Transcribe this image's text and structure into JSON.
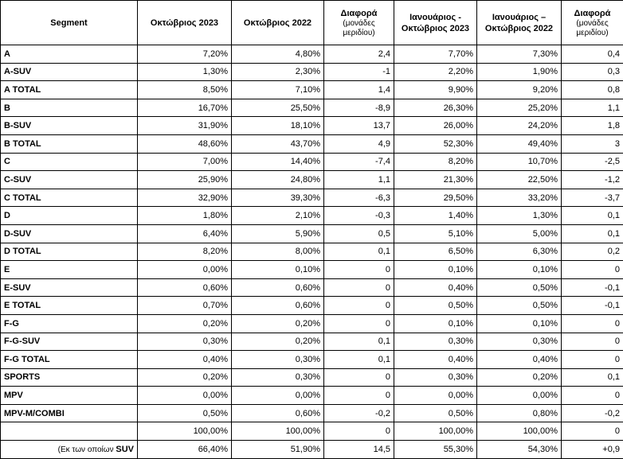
{
  "headers": {
    "segment": "Segment",
    "oct2023": "Οκτώβριος 2023",
    "oct2022": "Οκτώβριος 2022",
    "diff1": "Διαφορά",
    "diff1_sub": "(μονάδες μεριδίου)",
    "jan_oct2023": "Ιανουάριος - Οκτώβριος 2023",
    "jan_oct2022": "Ιανουάριος – Οκτώβριος 2022",
    "diff2": "Διαφορά",
    "diff2_sub": "(μονάδες μεριδίου)"
  },
  "rows": [
    {
      "segment": "A",
      "oct2023": "7,20%",
      "oct2022": "4,80%",
      "diff1": "2,4",
      "jan_oct2023": "7,70%",
      "jan_oct2022": "7,30%",
      "diff2": "0,4"
    },
    {
      "segment": "A-SUV",
      "oct2023": "1,30%",
      "oct2022": "2,30%",
      "diff1": "-1",
      "jan_oct2023": "2,20%",
      "jan_oct2022": "1,90%",
      "diff2": "0,3"
    },
    {
      "segment": "A TOTAL",
      "oct2023": "8,50%",
      "oct2022": "7,10%",
      "diff1": "1,4",
      "jan_oct2023": "9,90%",
      "jan_oct2022": "9,20%",
      "diff2": "0,8"
    },
    {
      "segment": "B",
      "oct2023": "16,70%",
      "oct2022": "25,50%",
      "diff1": "-8,9",
      "jan_oct2023": "26,30%",
      "jan_oct2022": "25,20%",
      "diff2": "1,1"
    },
    {
      "segment": "B-SUV",
      "oct2023": "31,90%",
      "oct2022": "18,10%",
      "diff1": "13,7",
      "jan_oct2023": "26,00%",
      "jan_oct2022": "24,20%",
      "diff2": "1,8"
    },
    {
      "segment": "B TOTAL",
      "oct2023": "48,60%",
      "oct2022": "43,70%",
      "diff1": "4,9",
      "jan_oct2023": "52,30%",
      "jan_oct2022": "49,40%",
      "diff2": "3"
    },
    {
      "segment": "C",
      "oct2023": "7,00%",
      "oct2022": "14,40%",
      "diff1": "-7,4",
      "jan_oct2023": "8,20%",
      "jan_oct2022": "10,70%",
      "diff2": "-2,5"
    },
    {
      "segment": "C-SUV",
      "oct2023": "25,90%",
      "oct2022": "24,80%",
      "diff1": "1,1",
      "jan_oct2023": "21,30%",
      "jan_oct2022": "22,50%",
      "diff2": "-1,2"
    },
    {
      "segment": "C TOTAL",
      "oct2023": "32,90%",
      "oct2022": "39,30%",
      "diff1": "-6,3",
      "jan_oct2023": "29,50%",
      "jan_oct2022": "33,20%",
      "diff2": "-3,7"
    },
    {
      "segment": "D",
      "oct2023": "1,80%",
      "oct2022": "2,10%",
      "diff1": "-0,3",
      "jan_oct2023": "1,40%",
      "jan_oct2022": "1,30%",
      "diff2": "0,1"
    },
    {
      "segment": "D-SUV",
      "oct2023": "6,40%",
      "oct2022": "5,90%",
      "diff1": "0,5",
      "jan_oct2023": "5,10%",
      "jan_oct2022": "5,00%",
      "diff2": "0,1"
    },
    {
      "segment": "D TOTAL",
      "oct2023": "8,20%",
      "oct2022": "8,00%",
      "diff1": "0,1",
      "jan_oct2023": "6,50%",
      "jan_oct2022": "6,30%",
      "diff2": "0,2"
    },
    {
      "segment": "E",
      "oct2023": "0,00%",
      "oct2022": "0,10%",
      "diff1": "0",
      "jan_oct2023": "0,10%",
      "jan_oct2022": "0,10%",
      "diff2": "0"
    },
    {
      "segment": "E-SUV",
      "oct2023": "0,60%",
      "oct2022": "0,60%",
      "diff1": "0",
      "jan_oct2023": "0,40%",
      "jan_oct2022": "0,50%",
      "diff2": "-0,1"
    },
    {
      "segment": "E TOTAL",
      "oct2023": "0,70%",
      "oct2022": "0,60%",
      "diff1": "0",
      "jan_oct2023": "0,50%",
      "jan_oct2022": "0,50%",
      "diff2": "-0,1"
    },
    {
      "segment": "F-G",
      "oct2023": "0,20%",
      "oct2022": "0,20%",
      "diff1": "0",
      "jan_oct2023": "0,10%",
      "jan_oct2022": "0,10%",
      "diff2": "0"
    },
    {
      "segment": "F-G-SUV",
      "oct2023": "0,30%",
      "oct2022": "0,20%",
      "diff1": "0,1",
      "jan_oct2023": "0,30%",
      "jan_oct2022": "0,30%",
      "diff2": "0"
    },
    {
      "segment": "F-G TOTAL",
      "oct2023": "0,40%",
      "oct2022": "0,30%",
      "diff1": "0,1",
      "jan_oct2023": "0,40%",
      "jan_oct2022": "0,40%",
      "diff2": "0"
    },
    {
      "segment": "SPORTS",
      "oct2023": "0,20%",
      "oct2022": "0,30%",
      "diff1": "0",
      "jan_oct2023": "0,30%",
      "jan_oct2022": "0,20%",
      "diff2": "0,1"
    },
    {
      "segment": "MPV",
      "oct2023": "0,00%",
      "oct2022": "0,00%",
      "diff1": "0",
      "jan_oct2023": "0,00%",
      "jan_oct2022": "0,00%",
      "diff2": "0"
    },
    {
      "segment": "MPV-M/COMBI",
      "oct2023": "0,50%",
      "oct2022": "0,60%",
      "diff1": "-0,2",
      "jan_oct2023": "0,50%",
      "jan_oct2022": "0,80%",
      "diff2": "-0,2"
    }
  ],
  "total_row": {
    "segment": "",
    "oct2023": "100,00%",
    "oct2022": "100,00%",
    "diff1": "0",
    "jan_oct2023": "100,00%",
    "jan_oct2022": "100,00%",
    "diff2": "0"
  },
  "suv_row": {
    "label_prefix": "(Εκ των οποίων ",
    "label_bold": "SUV",
    "oct2023": "66,40%",
    "oct2022": "51,90%",
    "diff1": "14,5",
    "jan_oct2023": "55,30%",
    "jan_oct2022": "54,30%",
    "diff2": "+0,9"
  }
}
